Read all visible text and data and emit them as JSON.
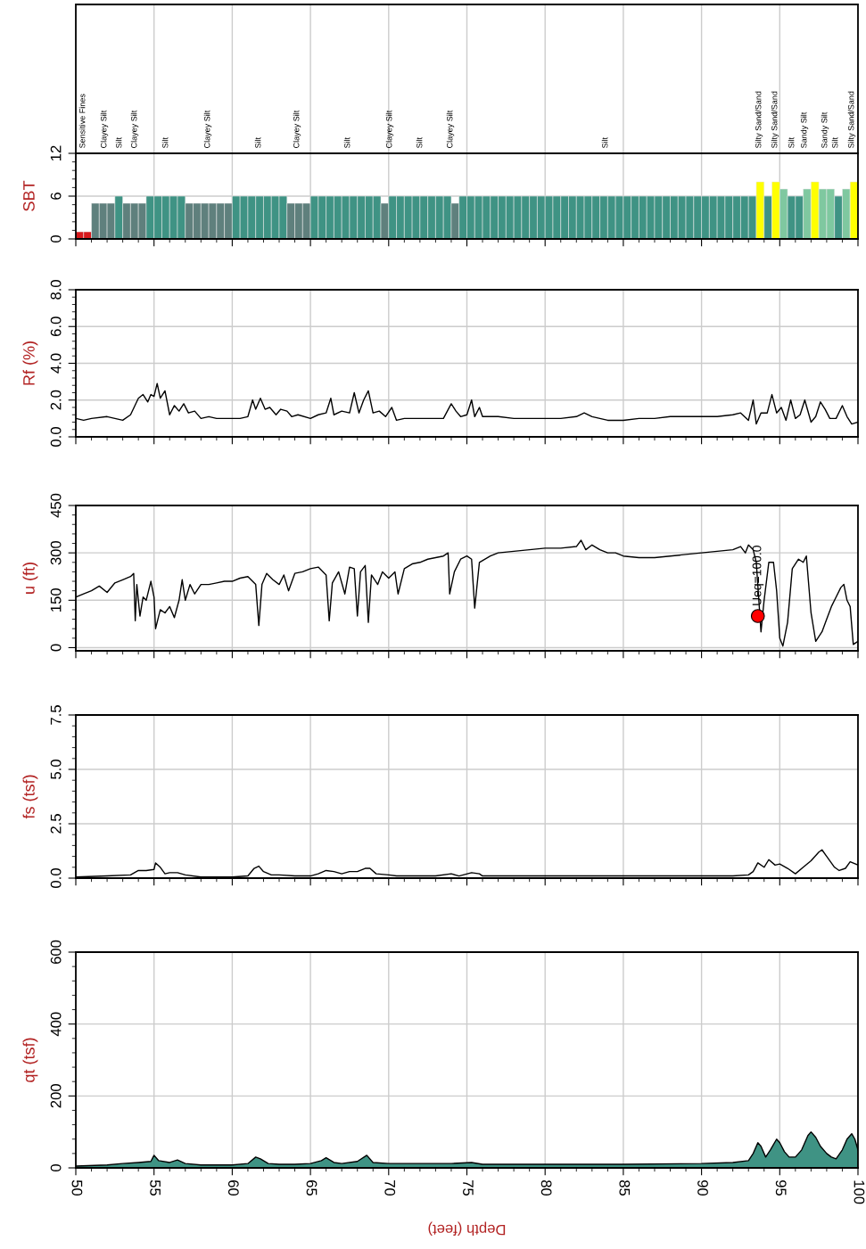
{
  "chart_data": [
    {
      "type": "bar",
      "ylabel": "SBT",
      "ylim": [
        0,
        12
      ],
      "yticks": [
        0,
        6,
        12
      ],
      "xlim": [
        50,
        100
      ],
      "xticks": [
        50,
        55,
        60,
        65,
        70,
        75,
        80,
        85,
        90,
        95,
        100
      ],
      "grid": true,
      "tick_labels": "y",
      "x": [
        50.25,
        50.75,
        51.25,
        51.75,
        52.25,
        52.75,
        53.25,
        53.75,
        54.25,
        54.75,
        55.25,
        55.75,
        56.25,
        56.75,
        57.25,
        57.75,
        58.25,
        58.75,
        59.25,
        59.75,
        60.25,
        60.75,
        61.25,
        61.75,
        62.25,
        62.75,
        63.25,
        63.75,
        64.25,
        64.75,
        65.25,
        65.75,
        66.25,
        66.75,
        67.25,
        67.75,
        68.25,
        68.75,
        69.25,
        69.75,
        70.25,
        70.75,
        71.25,
        71.75,
        72.25,
        72.75,
        73.25,
        73.75,
        74.25,
        74.75,
        75.25,
        75.75,
        76.25,
        76.75,
        77.25,
        77.75,
        78.25,
        78.75,
        79.25,
        79.75,
        80.25,
        80.75,
        81.25,
        81.75,
        82.25,
        82.75,
        83.25,
        83.75,
        84.25,
        84.75,
        85.25,
        85.75,
        86.25,
        86.75,
        87.25,
        87.75,
        88.25,
        88.75,
        89.25,
        89.75,
        90.25,
        90.75,
        91.25,
        91.75,
        92.25,
        92.75,
        93.25,
        93.75,
        94.25,
        94.75,
        95.25,
        95.75,
        96.25,
        96.75,
        97.25,
        97.75,
        98.25,
        98.75,
        99.25,
        99.75
      ],
      "values": [
        1,
        1,
        5,
        5,
        5,
        6,
        5,
        5,
        5,
        6,
        6,
        6,
        6,
        6,
        5,
        5,
        5,
        5,
        5,
        5,
        6,
        6,
        6,
        6,
        6,
        6,
        6,
        5,
        5,
        5,
        6,
        6,
        6,
        6,
        6,
        6,
        6,
        6,
        6,
        5,
        6,
        6,
        6,
        6,
        6,
        6,
        6,
        6,
        5,
        6,
        6,
        6,
        6,
        6,
        6,
        6,
        6,
        6,
        6,
        6,
        6,
        6,
        6,
        6,
        6,
        6,
        6,
        6,
        6,
        6,
        6,
        6,
        6,
        6,
        6,
        6,
        6,
        6,
        6,
        6,
        6,
        6,
        6,
        6,
        6,
        6,
        6,
        8,
        6,
        8,
        7,
        6,
        6,
        7,
        8,
        7,
        7,
        6,
        7,
        8
      ],
      "colors": [
        "#d7191c",
        "#d7191c",
        "#5f807d",
        "#5f807d",
        "#5f807d",
        "#3f9384",
        "#5f807d",
        "#5f807d",
        "#5f807d",
        "#3f9384",
        "#3f9384",
        "#3f9384",
        "#3f9384",
        "#3f9384",
        "#5f807d",
        "#5f807d",
        "#5f807d",
        "#5f807d",
        "#5f807d",
        "#5f807d",
        "#3f9384",
        "#3f9384",
        "#3f9384",
        "#3f9384",
        "#3f9384",
        "#3f9384",
        "#3f9384",
        "#5f807d",
        "#5f807d",
        "#5f807d",
        "#3f9384",
        "#3f9384",
        "#3f9384",
        "#3f9384",
        "#3f9384",
        "#3f9384",
        "#3f9384",
        "#3f9384",
        "#3f9384",
        "#5f807d",
        "#3f9384",
        "#3f9384",
        "#3f9384",
        "#3f9384",
        "#3f9384",
        "#3f9384",
        "#3f9384",
        "#3f9384",
        "#5f807d",
        "#3f9384",
        "#3f9384",
        "#3f9384",
        "#3f9384",
        "#3f9384",
        "#3f9384",
        "#3f9384",
        "#3f9384",
        "#3f9384",
        "#3f9384",
        "#3f9384",
        "#3f9384",
        "#3f9384",
        "#3f9384",
        "#3f9384",
        "#3f9384",
        "#3f9384",
        "#3f9384",
        "#3f9384",
        "#3f9384",
        "#3f9384",
        "#3f9384",
        "#3f9384",
        "#3f9384",
        "#3f9384",
        "#3f9384",
        "#3f9384",
        "#3f9384",
        "#3f9384",
        "#3f9384",
        "#3f9384",
        "#3f9384",
        "#3f9384",
        "#3f9384",
        "#3f9384",
        "#3f9384",
        "#3f9384",
        "#3f9384",
        "#ffff00",
        "#3f9384",
        "#ffff00",
        "#7fc8a0",
        "#3f9384",
        "#3f9384",
        "#7fc8a0",
        "#ffff00",
        "#7fc8a0",
        "#7fc8a0",
        "#3f9384",
        "#7fc8a0",
        "#ffff00"
      ],
      "annotations": [
        "Sensitive Fines",
        "Clayey Silt",
        "Silt",
        "Clayey Silt",
        "Silt",
        "Clayey Silt",
        "Silt",
        "Clayey Silt",
        "Silt",
        "Clayey Silt",
        "Silt",
        "Clayey Silt",
        "Silt",
        "Silty Sand/Sand",
        "Silty Sand/Sand",
        "Silt",
        "Sandy Silt",
        "Sandy Silt",
        "Silt",
        "Silty Sand/Sand"
      ]
    },
    {
      "type": "line",
      "ylabel": "Rf (%)",
      "ylim": [
        0,
        8
      ],
      "yticks": [
        {
          "value": 0,
          "label": "0.0"
        },
        {
          "value": 2,
          "label": "2.0"
        },
        {
          "value": 4,
          "label": "4.0"
        },
        {
          "value": 6,
          "label": "6.0"
        },
        {
          "value": 8,
          "label": "8.0"
        }
      ],
      "xlim": [
        50,
        100
      ],
      "xticks": [
        50,
        55,
        60,
        65,
        70,
        75,
        80,
        85,
        90,
        95,
        100
      ],
      "grid": true,
      "tick_labels": "y",
      "series": [
        {
          "color": "#000000",
          "x": [
            50,
            50.5,
            51,
            52,
            52.5,
            53,
            53.5,
            54,
            54.3,
            54.6,
            54.8,
            55,
            55.2,
            55.4,
            55.7,
            56,
            56.3,
            56.6,
            56.9,
            57.2,
            57.6,
            58,
            58.5,
            59,
            60,
            60.5,
            61,
            61.3,
            61.5,
            61.8,
            62.1,
            62.4,
            62.8,
            63.1,
            63.5,
            63.8,
            64.2,
            65,
            65.5,
            66,
            66.3,
            66.5,
            67,
            67.5,
            67.8,
            68.1,
            68.4,
            68.7,
            69,
            69.4,
            69.8,
            70.2,
            70.5,
            71,
            72,
            73,
            73.5,
            74,
            74.3,
            74.6,
            75,
            75.3,
            75.5,
            75.8,
            76,
            77,
            78,
            79,
            80,
            81,
            82,
            82.5,
            83,
            84,
            85,
            86,
            87,
            88,
            89,
            90,
            91,
            92,
            92.5,
            93,
            93.3,
            93.5,
            93.8,
            94.2,
            94.5,
            94.8,
            95.1,
            95.4,
            95.7,
            96,
            96.3,
            96.6,
            97,
            97.3,
            97.6,
            97.9,
            98.2,
            98.6,
            99,
            99.3,
            99.6,
            100
          ],
          "values": [
            1.0,
            0.9,
            1.0,
            1.1,
            1.0,
            0.9,
            1.2,
            2.1,
            2.3,
            1.9,
            2.3,
            2.2,
            2.9,
            2.1,
            2.5,
            1.2,
            1.7,
            1.4,
            1.8,
            1.3,
            1.4,
            1.0,
            1.1,
            1.0,
            1.0,
            1.0,
            1.1,
            2.0,
            1.5,
            2.1,
            1.5,
            1.6,
            1.2,
            1.5,
            1.4,
            1.1,
            1.2,
            1.0,
            1.2,
            1.3,
            2.1,
            1.2,
            1.4,
            1.3,
            2.4,
            1.3,
            2.0,
            2.5,
            1.3,
            1.4,
            1.1,
            1.6,
            0.9,
            1.0,
            1.0,
            1.0,
            1.0,
            1.8,
            1.4,
            1.1,
            1.2,
            2.0,
            1.1,
            1.6,
            1.1,
            1.1,
            1.0,
            1.0,
            1.0,
            1.0,
            1.1,
            1.3,
            1.1,
            0.9,
            0.9,
            1.0,
            1.0,
            1.1,
            1.1,
            1.1,
            1.1,
            1.2,
            1.3,
            0.9,
            2.0,
            0.7,
            1.3,
            1.3,
            2.3,
            1.3,
            1.6,
            0.9,
            2.0,
            1.0,
            1.2,
            2.0,
            0.8,
            1.1,
            1.9,
            1.5,
            1.0,
            1.0,
            1.7,
            1.1,
            0.7,
            0.8
          ]
        }
      ]
    },
    {
      "type": "line",
      "ylabel": "u (ft)",
      "ylim": [
        -10,
        450
      ],
      "yticks": [
        0,
        150,
        300,
        450
      ],
      "xlim": [
        50,
        100
      ],
      "xticks": [
        50,
        55,
        60,
        65,
        70,
        75,
        80,
        85,
        90,
        95,
        100
      ],
      "grid": true,
      "tick_labels": "y",
      "series": [
        {
          "color": "#000000",
          "x": [
            50,
            50.5,
            51,
            51.5,
            52,
            52.5,
            53,
            53.5,
            53.7,
            53.8,
            53.9,
            54.1,
            54.3,
            54.5,
            54.8,
            55,
            55.1,
            55.4,
            55.7,
            56,
            56.3,
            56.6,
            56.8,
            57,
            57.3,
            57.6,
            58,
            58.5,
            59,
            59.5,
            60,
            60.5,
            61,
            61.5,
            61.7,
            61.9,
            62.2,
            62.6,
            63,
            63.3,
            63.6,
            64,
            64.5,
            65,
            65.5,
            66,
            66.2,
            66.4,
            66.8,
            67.2,
            67.5,
            67.8,
            68,
            68.2,
            68.5,
            68.7,
            68.9,
            69.3,
            69.6,
            70,
            70.4,
            70.6,
            71,
            71.5,
            72,
            72.5,
            73,
            73.5,
            73.8,
            73.9,
            74.2,
            74.6,
            75,
            75.3,
            75.5,
            75.8,
            76.5,
            77,
            78,
            79,
            80,
            81,
            82,
            82.3,
            82.6,
            83,
            83.5,
            84,
            84.5,
            85,
            86,
            87,
            88,
            89,
            90,
            91,
            92,
            92.5,
            92.8,
            93,
            93.3,
            93.5,
            93.8,
            94,
            94.3,
            94.6,
            94.8,
            95,
            95.2,
            95.5,
            95.8,
            96.2,
            96.5,
            96.7,
            97,
            97.3,
            97.7,
            98,
            98.3,
            98.6,
            98.9,
            99.1,
            99.3,
            99.5,
            99.7,
            100
          ],
          "values": [
            160,
            170,
            180,
            195,
            175,
            205,
            215,
            225,
            235,
            85,
            200,
            100,
            160,
            150,
            210,
            160,
            60,
            120,
            110,
            130,
            95,
            150,
            215,
            150,
            200,
            170,
            200,
            200,
            205,
            210,
            210,
            220,
            225,
            200,
            70,
            200,
            235,
            215,
            200,
            230,
            180,
            235,
            240,
            250,
            255,
            230,
            85,
            205,
            240,
            170,
            255,
            250,
            100,
            240,
            260,
            80,
            230,
            200,
            240,
            220,
            240,
            170,
            250,
            265,
            270,
            280,
            285,
            290,
            300,
            170,
            240,
            280,
            290,
            280,
            125,
            270,
            290,
            300,
            305,
            310,
            315,
            315,
            320,
            340,
            310,
            325,
            310,
            300,
            300,
            290,
            285,
            285,
            290,
            295,
            300,
            305,
            310,
            320,
            300,
            325,
            310,
            270,
            50,
            150,
            270,
            270,
            180,
            30,
            5,
            80,
            250,
            280,
            270,
            290,
            110,
            20,
            50,
            90,
            130,
            160,
            190,
            200,
            150,
            130,
            10,
            20
          ]
        },
        {
          "type": "scatter",
          "color": "#ff0000",
          "marker": "circle",
          "x": [
            93.6
          ],
          "values": [
            100
          ]
        }
      ],
      "annotations": [
        {
          "text": "Ueq=100.0",
          "x": 93.6,
          "y": 100
        }
      ]
    },
    {
      "type": "line",
      "ylabel": "fs (tsf)",
      "ylim": [
        0,
        7.5
      ],
      "yticks": [
        {
          "value": 0,
          "label": "0.0"
        },
        2.5,
        {
          "value": 5,
          "label": "5.0"
        },
        7.5
      ],
      "xlim": [
        50,
        100
      ],
      "xticks": [
        50,
        55,
        60,
        65,
        70,
        75,
        80,
        85,
        90,
        95,
        100
      ],
      "grid": true,
      "tick_labels": "y",
      "series": [
        {
          "color": "#000000",
          "x": [
            50,
            52,
            53.5,
            54,
            54.5,
            55,
            55.1,
            55.4,
            55.7,
            56,
            56.5,
            57,
            58,
            60,
            61,
            61.4,
            61.7,
            62,
            62.5,
            63,
            64,
            65,
            65.5,
            66,
            66.5,
            67,
            67.5,
            68,
            68.5,
            68.8,
            69.2,
            70,
            70.5,
            71,
            72,
            73,
            74,
            74.5,
            75.3,
            75.8,
            76,
            78,
            80,
            82,
            84,
            86,
            88,
            90,
            92,
            93,
            93.3,
            93.6,
            94,
            94.3,
            94.7,
            95,
            95.5,
            96,
            96.5,
            97,
            97.5,
            97.7,
            98,
            98.5,
            98.8,
            99.2,
            99.5,
            100
          ],
          "values": [
            0.05,
            0.1,
            0.15,
            0.35,
            0.35,
            0.4,
            0.7,
            0.5,
            0.2,
            0.25,
            0.25,
            0.15,
            0.05,
            0.05,
            0.1,
            0.45,
            0.55,
            0.3,
            0.15,
            0.15,
            0.1,
            0.1,
            0.2,
            0.35,
            0.3,
            0.2,
            0.3,
            0.3,
            0.45,
            0.45,
            0.2,
            0.15,
            0.1,
            0.1,
            0.1,
            0.1,
            0.2,
            0.1,
            0.25,
            0.2,
            0.1,
            0.1,
            0.1,
            0.1,
            0.1,
            0.1,
            0.1,
            0.1,
            0.1,
            0.15,
            0.3,
            0.7,
            0.5,
            0.85,
            0.6,
            0.65,
            0.45,
            0.2,
            0.5,
            0.8,
            1.2,
            1.3,
            1.0,
            0.5,
            0.35,
            0.45,
            0.75,
            0.6
          ]
        }
      ]
    },
    {
      "type": "area",
      "ylabel": "qt (tsf)",
      "xlabel": "Depth (feet)",
      "ylim": [
        0,
        600
      ],
      "yticks": [
        0,
        200,
        400,
        600
      ],
      "xlim": [
        50,
        100
      ],
      "xticks": [
        50,
        55,
        60,
        65,
        70,
        75,
        80,
        85,
        90,
        95,
        100
      ],
      "grid": true,
      "series": [
        {
          "color": "#3f9384",
          "x": [
            50,
            52,
            53,
            54,
            54.8,
            55,
            55.3,
            56,
            56.5,
            57,
            58,
            60,
            61,
            61.5,
            61.8,
            62.3,
            63,
            64,
            65,
            65.7,
            66,
            66.5,
            67,
            68,
            68.6,
            69,
            70,
            71,
            72,
            74,
            75.3,
            76,
            80,
            85,
            90,
            92,
            93,
            93.3,
            93.6,
            93.8,
            94.1,
            94.4,
            94.8,
            95,
            95.3,
            95.6,
            96,
            96.4,
            96.8,
            97,
            97.3,
            97.6,
            98,
            98.3,
            98.6,
            99,
            99.3,
            99.6,
            99.8,
            100
          ],
          "values": [
            5,
            8,
            12,
            15,
            18,
            35,
            20,
            15,
            22,
            12,
            8,
            8,
            12,
            30,
            25,
            12,
            10,
            10,
            12,
            20,
            28,
            15,
            12,
            18,
            35,
            15,
            12,
            12,
            12,
            12,
            15,
            10,
            10,
            10,
            12,
            15,
            20,
            40,
            70,
            60,
            30,
            50,
            80,
            70,
            45,
            30,
            30,
            50,
            90,
            100,
            85,
            60,
            40,
            30,
            25,
            50,
            80,
            95,
            80,
            50
          ]
        }
      ]
    }
  ]
}
